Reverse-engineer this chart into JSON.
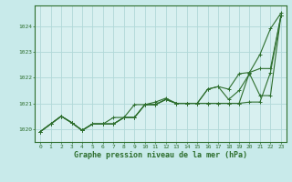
{
  "background_color": "#c8eaea",
  "plot_bg_color": "#d8f0f0",
  "grid_color": "#b0d8d8",
  "line_color": "#2d6e2d",
  "title": "Graphe pression niveau de la mer (hPa)",
  "xlim": [
    -0.5,
    23.5
  ],
  "ylim": [
    1019.5,
    1024.8
  ],
  "yticks": [
    1020,
    1021,
    1022,
    1023,
    1024
  ],
  "xticks": [
    0,
    1,
    2,
    3,
    4,
    5,
    6,
    7,
    8,
    9,
    10,
    11,
    12,
    13,
    14,
    15,
    16,
    17,
    18,
    19,
    20,
    21,
    22,
    23
  ],
  "series": [
    [
      1019.9,
      1020.2,
      1020.5,
      1020.25,
      1019.95,
      1020.2,
      1020.2,
      1020.2,
      1020.45,
      1020.45,
      1020.95,
      1020.95,
      1021.15,
      1021.0,
      1021.0,
      1021.0,
      1021.0,
      1021.0,
      1021.0,
      1021.0,
      1021.05,
      1021.05,
      1022.2,
      1024.4
    ],
    [
      1019.9,
      1020.2,
      1020.5,
      1020.25,
      1019.95,
      1020.2,
      1020.2,
      1020.2,
      1020.45,
      1020.45,
      1020.95,
      1020.95,
      1021.15,
      1021.0,
      1021.0,
      1021.0,
      1021.0,
      1021.0,
      1021.0,
      1021.0,
      1022.2,
      1022.9,
      1023.9,
      1024.5
    ],
    [
      1019.9,
      1020.2,
      1020.5,
      1020.25,
      1019.95,
      1020.2,
      1020.2,
      1020.45,
      1020.45,
      1020.95,
      1020.95,
      1021.05,
      1021.2,
      1021.0,
      1021.0,
      1021.0,
      1021.55,
      1021.65,
      1021.15,
      1021.5,
      1022.15,
      1021.3,
      1021.3,
      1024.4
    ],
    [
      1019.9,
      1020.2,
      1020.5,
      1020.25,
      1019.95,
      1020.2,
      1020.2,
      1020.2,
      1020.45,
      1020.45,
      1020.95,
      1020.95,
      1021.15,
      1021.0,
      1021.0,
      1021.0,
      1021.55,
      1021.65,
      1021.55,
      1022.15,
      1022.2,
      1022.35,
      1022.35,
      1024.4
    ]
  ],
  "marker": "+",
  "markersize": 3,
  "linewidth": 0.8
}
